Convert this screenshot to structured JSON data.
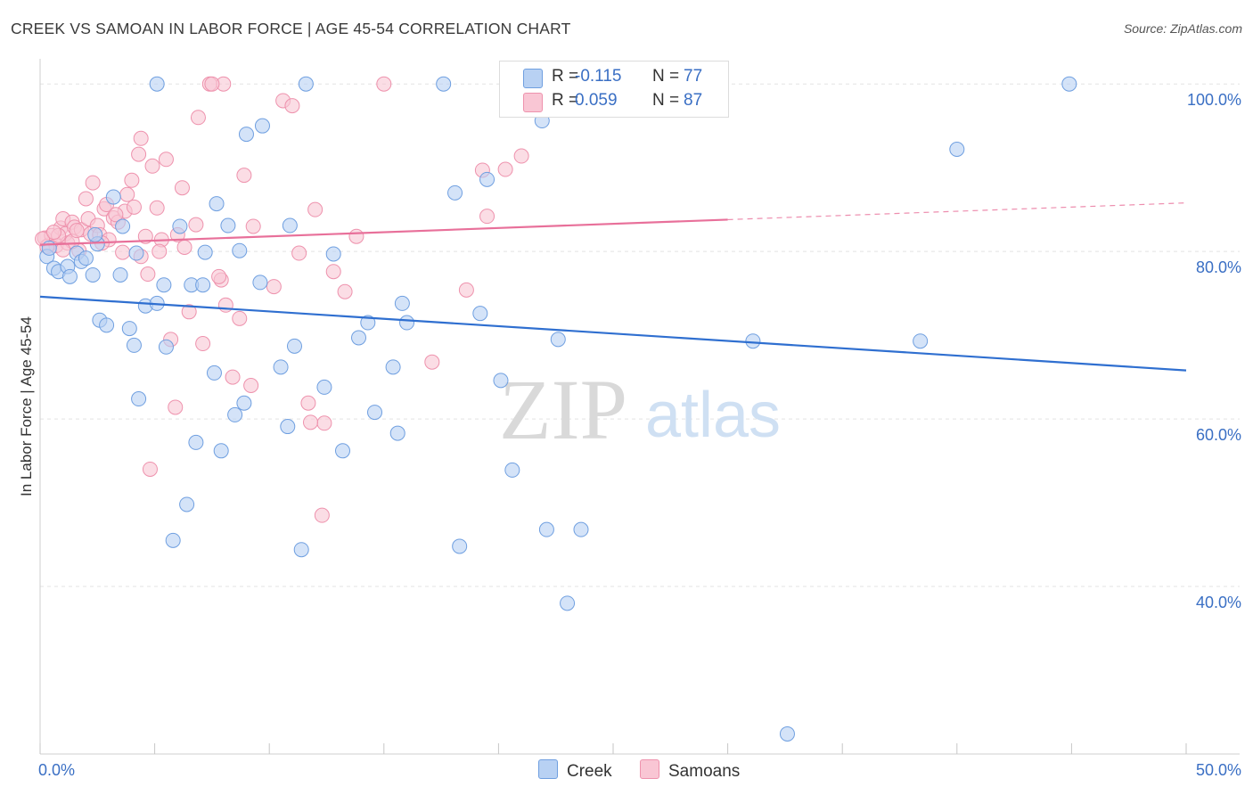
{
  "title": "CREEK VS SAMOAN IN LABOR FORCE | AGE 45-54 CORRELATION CHART",
  "source": "Source: ZipAtlas.com",
  "watermark": {
    "zip": "ZIP",
    "atlas": "atlas"
  },
  "colors": {
    "creek_fill": "#b8d1f3",
    "creek_stroke": "#6f9fe0",
    "creek_line": "#2f6fd0",
    "samoan_fill": "#f9c6d4",
    "samoan_stroke": "#ee92ad",
    "samoan_line": "#e8709a",
    "axis_label": "#3a6fc4",
    "grid": "#e3e3e3"
  },
  "legend_top": {
    "creek": {
      "r_label": "R =",
      "r_value": "-0.115",
      "n_label": "N =",
      "n_value": "77"
    },
    "samoan": {
      "r_label": "R =",
      "r_value": "0.059",
      "n_label": "N =",
      "n_value": "87"
    }
  },
  "legend_bottom": {
    "creek": "Creek",
    "samoan": "Samoans"
  },
  "chart_data": {
    "type": "scatter",
    "xlabel": "",
    "ylabel": "In Labor Force | Age 45-54",
    "xlim": [
      0,
      50
    ],
    "ylim": [
      20,
      103
    ],
    "x_tick_labels": [
      {
        "value": 0,
        "label": "0.0%"
      },
      {
        "value": 50,
        "label": "50.0%"
      }
    ],
    "y_tick_labels": [
      {
        "value": 40,
        "label": "40.0%"
      },
      {
        "value": 60,
        "label": "60.0%"
      },
      {
        "value": 80,
        "label": "80.0%"
      },
      {
        "value": 100,
        "label": "100.0%"
      }
    ],
    "grid": true,
    "legend_position": "top-center",
    "series": [
      {
        "name": "Creek",
        "trend": {
          "x0": 0,
          "y0": 74.6,
          "x1": 50,
          "y1": 65.8
        },
        "points": [
          [
            0.3,
            79.4
          ],
          [
            0.6,
            78.0
          ],
          [
            0.8,
            77.6
          ],
          [
            1.2,
            78.2
          ],
          [
            1.3,
            77.0
          ],
          [
            1.6,
            79.8
          ],
          [
            1.8,
            78.8
          ],
          [
            2.0,
            79.2
          ],
          [
            2.3,
            77.2
          ],
          [
            2.5,
            80.9
          ],
          [
            3.2,
            86.5
          ],
          [
            3.6,
            83.0
          ],
          [
            4.2,
            79.8
          ],
          [
            3.5,
            77.2
          ],
          [
            2.6,
            71.8
          ],
          [
            2.9,
            71.2
          ],
          [
            3.9,
            70.8
          ],
          [
            4.1,
            68.8
          ],
          [
            4.6,
            73.5
          ],
          [
            5.1,
            73.8
          ],
          [
            5.4,
            76.0
          ],
          [
            5.5,
            68.6
          ],
          [
            6.1,
            83.0
          ],
          [
            6.6,
            76.0
          ],
          [
            7.1,
            76.0
          ],
          [
            7.2,
            79.9
          ],
          [
            7.6,
            65.5
          ],
          [
            7.7,
            85.7
          ],
          [
            8.2,
            83.1
          ],
          [
            8.7,
            80.1
          ],
          [
            9.0,
            94.0
          ],
          [
            9.6,
            76.3
          ],
          [
            9.7,
            95.0
          ],
          [
            10.5,
            66.2
          ],
          [
            10.9,
            83.1
          ],
          [
            11.1,
            68.7
          ],
          [
            11.6,
            100.0
          ],
          [
            4.3,
            62.4
          ],
          [
            5.8,
            45.5
          ],
          [
            6.4,
            49.8
          ],
          [
            6.8,
            57.2
          ],
          [
            7.9,
            56.2
          ],
          [
            8.5,
            60.5
          ],
          [
            8.9,
            61.9
          ],
          [
            10.8,
            59.1
          ],
          [
            11.4,
            44.4
          ],
          [
            12.4,
            63.8
          ],
          [
            12.8,
            79.7
          ],
          [
            13.2,
            56.2
          ],
          [
            13.9,
            69.7
          ],
          [
            14.3,
            71.5
          ],
          [
            14.6,
            60.8
          ],
          [
            15.4,
            66.2
          ],
          [
            15.6,
            58.3
          ],
          [
            15.8,
            73.8
          ],
          [
            16.0,
            71.5
          ],
          [
            17.6,
            100.0
          ],
          [
            18.1,
            87.0
          ],
          [
            18.3,
            44.8
          ],
          [
            19.2,
            72.6
          ],
          [
            19.5,
            88.6
          ],
          [
            20.1,
            64.6
          ],
          [
            20.6,
            53.9
          ],
          [
            21.9,
            95.6
          ],
          [
            22.1,
            46.8
          ],
          [
            22.6,
            69.5
          ],
          [
            23.0,
            38.0
          ],
          [
            23.6,
            46.8
          ],
          [
            25.5,
            100.0
          ],
          [
            31.1,
            69.3
          ],
          [
            32.6,
            22.4
          ],
          [
            38.4,
            69.3
          ],
          [
            40.0,
            92.2
          ],
          [
            44.9,
            100.0
          ],
          [
            5.1,
            100.0
          ],
          [
            0.4,
            80.4
          ],
          [
            2.4,
            82.0
          ]
        ]
      },
      {
        "name": "Samoans",
        "trend": {
          "x0": 0,
          "y0": 80.8,
          "x1": 30,
          "y1": 83.8
        },
        "trend_dashed": {
          "x0": 30,
          "y0": 83.8,
          "x1": 50,
          "y1": 85.8
        },
        "points": [
          [
            0.2,
            81.6
          ],
          [
            0.4,
            80.8
          ],
          [
            0.5,
            81.9
          ],
          [
            0.7,
            80.7
          ],
          [
            0.9,
            82.8
          ],
          [
            1.0,
            83.9
          ],
          [
            1.1,
            82.1
          ],
          [
            1.2,
            81.0
          ],
          [
            1.4,
            83.5
          ],
          [
            1.5,
            82.9
          ],
          [
            1.7,
            80.1
          ],
          [
            1.8,
            82.6
          ],
          [
            2.0,
            86.3
          ],
          [
            2.1,
            83.9
          ],
          [
            2.2,
            82.1
          ],
          [
            2.3,
            88.2
          ],
          [
            2.5,
            83.1
          ],
          [
            2.6,
            82.0
          ],
          [
            2.8,
            85.1
          ],
          [
            3.0,
            81.4
          ],
          [
            3.2,
            84.0
          ],
          [
            3.4,
            83.5
          ],
          [
            3.6,
            79.9
          ],
          [
            3.7,
            84.8
          ],
          [
            3.8,
            86.8
          ],
          [
            4.0,
            88.5
          ],
          [
            4.1,
            85.3
          ],
          [
            4.3,
            91.6
          ],
          [
            4.4,
            93.5
          ],
          [
            4.6,
            81.8
          ],
          [
            4.7,
            77.3
          ],
          [
            4.9,
            90.2
          ],
          [
            5.1,
            85.2
          ],
          [
            5.3,
            81.4
          ],
          [
            5.5,
            91.0
          ],
          [
            5.7,
            69.5
          ],
          [
            6.0,
            82.0
          ],
          [
            6.2,
            87.6
          ],
          [
            6.5,
            72.8
          ],
          [
            6.8,
            83.2
          ],
          [
            7.1,
            69.0
          ],
          [
            7.4,
            100.0
          ],
          [
            7.9,
            76.6
          ],
          [
            8.1,
            73.6
          ],
          [
            8.4,
            65.0
          ],
          [
            8.7,
            72.0
          ],
          [
            8.9,
            89.1
          ],
          [
            9.3,
            83.0
          ],
          [
            10.2,
            75.8
          ],
          [
            10.6,
            98.0
          ],
          [
            11.0,
            97.4
          ],
          [
            11.3,
            79.8
          ],
          [
            11.7,
            61.9
          ],
          [
            12.0,
            85.0
          ],
          [
            12.4,
            59.5
          ],
          [
            12.8,
            77.6
          ],
          [
            13.3,
            75.2
          ],
          [
            13.8,
            81.8
          ],
          [
            15.0,
            100.0
          ],
          [
            17.1,
            66.8
          ],
          [
            18.6,
            75.4
          ],
          [
            19.3,
            89.7
          ],
          [
            19.5,
            84.2
          ],
          [
            20.3,
            89.8
          ],
          [
            21.0,
            91.4
          ],
          [
            6.9,
            96.0
          ],
          [
            7.8,
            77.0
          ],
          [
            5.9,
            61.4
          ],
          [
            4.8,
            54.0
          ],
          [
            11.8,
            59.6
          ],
          [
            12.3,
            48.5
          ],
          [
            1.4,
            81.2
          ],
          [
            0.8,
            81.9
          ],
          [
            1.6,
            82.5
          ],
          [
            2.9,
            85.6
          ],
          [
            8.0,
            100.0
          ],
          [
            9.2,
            64.0
          ],
          [
            3.3,
            84.4
          ],
          [
            0.3,
            80.6
          ],
          [
            0.1,
            81.5
          ],
          [
            0.6,
            82.3
          ],
          [
            2.7,
            81.0
          ],
          [
            1.0,
            80.2
          ],
          [
            5.2,
            80.0
          ],
          [
            7.5,
            100.0
          ],
          [
            6.3,
            80.5
          ],
          [
            4.4,
            79.4
          ]
        ]
      }
    ]
  }
}
